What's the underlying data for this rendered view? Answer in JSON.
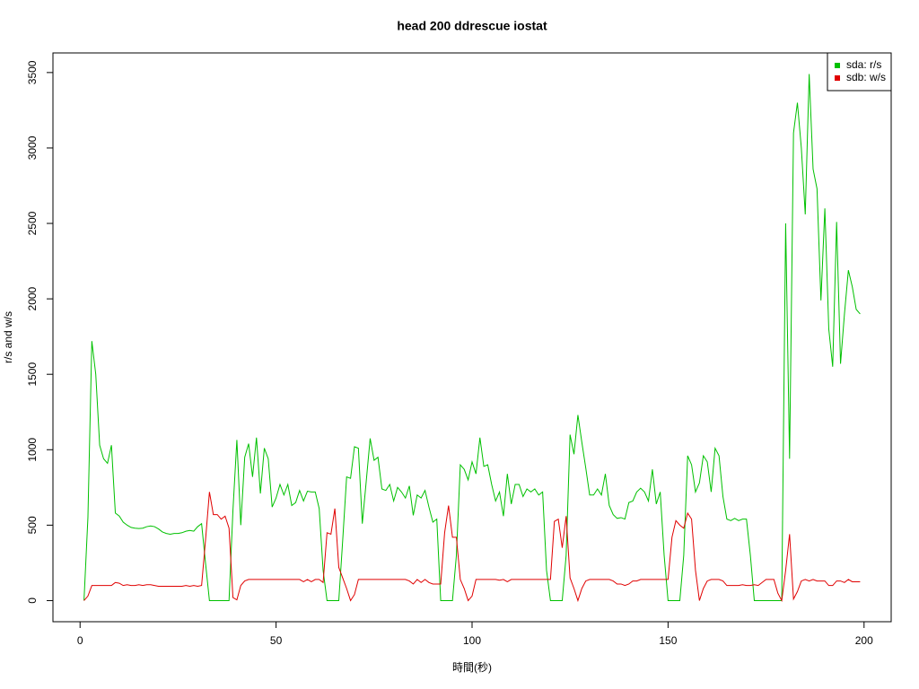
{
  "chart_data": {
    "type": "line",
    "title": "head 200 ddrescue iostat",
    "xlabel": "時間(秒)",
    "ylabel": "r/s and w/s",
    "x": [
      1,
      2,
      3,
      4,
      5,
      6,
      7,
      8,
      9,
      10,
      11,
      12,
      13,
      14,
      15,
      16,
      17,
      18,
      19,
      20,
      21,
      22,
      23,
      24,
      25,
      26,
      27,
      28,
      29,
      30,
      31,
      32,
      33,
      34,
      35,
      36,
      37,
      38,
      39,
      40,
      41,
      42,
      43,
      44,
      45,
      46,
      47,
      48,
      49,
      50,
      51,
      52,
      53,
      54,
      55,
      56,
      57,
      58,
      59,
      60,
      61,
      62,
      63,
      64,
      65,
      66,
      67,
      68,
      69,
      70,
      71,
      72,
      73,
      74,
      75,
      76,
      77,
      78,
      79,
      80,
      81,
      82,
      83,
      84,
      85,
      86,
      87,
      88,
      89,
      90,
      91,
      92,
      93,
      94,
      95,
      96,
      97,
      98,
      99,
      100,
      101,
      102,
      103,
      104,
      105,
      106,
      107,
      108,
      109,
      110,
      111,
      112,
      113,
      114,
      115,
      116,
      117,
      118,
      119,
      120,
      121,
      122,
      123,
      124,
      125,
      126,
      127,
      128,
      129,
      130,
      131,
      132,
      133,
      134,
      135,
      136,
      137,
      138,
      139,
      140,
      141,
      142,
      143,
      144,
      145,
      146,
      147,
      148,
      149,
      150,
      151,
      152,
      153,
      154,
      155,
      156,
      157,
      158,
      159,
      160,
      161,
      162,
      163,
      164,
      165,
      166,
      167,
      168,
      169,
      170,
      171,
      172,
      173,
      174,
      175,
      176,
      177,
      178,
      179,
      180,
      181,
      182,
      183,
      184,
      185,
      186,
      187,
      188,
      189,
      190,
      191,
      192,
      193,
      194,
      195,
      196,
      197,
      198,
      199
    ],
    "series": [
      {
        "name": "sda: r/s",
        "color": "#00c000",
        "values": [
          0,
          550,
          1720,
          1500,
          1030,
          940,
          910,
          1030,
          580,
          560,
          520,
          500,
          485,
          480,
          478,
          480,
          490,
          495,
          490,
          475,
          455,
          445,
          440,
          445,
          445,
          450,
          460,
          465,
          460,
          490,
          510,
          250,
          0,
          0,
          0,
          0,
          0,
          0,
          600,
          1065,
          500,
          950,
          1040,
          820,
          1080,
          710,
          1010,
          940,
          620,
          680,
          770,
          700,
          770,
          630,
          650,
          730,
          660,
          725,
          720,
          720,
          610,
          200,
          0,
          0,
          0,
          0,
          400,
          820,
          810,
          1020,
          1010,
          510,
          790,
          1075,
          930,
          950,
          740,
          730,
          770,
          660,
          750,
          720,
          680,
          760,
          565,
          700,
          680,
          730,
          620,
          520,
          540,
          0,
          0,
          0,
          0,
          300,
          900,
          870,
          800,
          920,
          840,
          1080,
          890,
          900,
          770,
          660,
          720,
          560,
          840,
          640,
          770,
          770,
          690,
          740,
          720,
          740,
          700,
          720,
          200,
          0,
          0,
          0,
          0,
          300,
          1100,
          970,
          1230,
          1050,
          880,
          700,
          700,
          740,
          700,
          840,
          630,
          570,
          545,
          550,
          540,
          650,
          660,
          720,
          745,
          720,
          660,
          870,
          640,
          720,
          300,
          0,
          0,
          0,
          0,
          300,
          960,
          900,
          720,
          780,
          960,
          920,
          720,
          1010,
          960,
          690,
          540,
          530,
          545,
          530,
          540,
          540,
          300,
          0,
          0,
          0,
          0,
          0,
          0,
          0,
          0,
          2500,
          940,
          3100,
          3300,
          3000,
          2560,
          3490,
          2860,
          2730,
          1990,
          2600,
          1800,
          1550,
          2510,
          1570,
          1900,
          2190,
          2080,
          1930,
          1900
        ]
      },
      {
        "name": "sdb: w/s",
        "color": "#e00000",
        "values": [
          0,
          30,
          100,
          100,
          100,
          100,
          100,
          100,
          120,
          115,
          100,
          105,
          100,
          100,
          105,
          100,
          105,
          105,
          100,
          95,
          95,
          95,
          95,
          95,
          95,
          95,
          100,
          95,
          100,
          95,
          100,
          400,
          720,
          570,
          570,
          540,
          560,
          480,
          20,
          5,
          100,
          130,
          140,
          140,
          140,
          140,
          140,
          140,
          140,
          140,
          140,
          140,
          140,
          140,
          140,
          140,
          125,
          140,
          125,
          140,
          140,
          120,
          450,
          440,
          610,
          220,
          150,
          80,
          0,
          40,
          140,
          140,
          140,
          140,
          140,
          140,
          140,
          140,
          140,
          140,
          140,
          140,
          140,
          130,
          110,
          140,
          120,
          140,
          120,
          110,
          110,
          110,
          450,
          630,
          420,
          420,
          140,
          80,
          0,
          30,
          140,
          140,
          140,
          140,
          140,
          140,
          135,
          140,
          125,
          140,
          140,
          140,
          140,
          140,
          140,
          140,
          140,
          140,
          140,
          140,
          525,
          540,
          350,
          560,
          150,
          80,
          0,
          80,
          130,
          140,
          140,
          140,
          140,
          140,
          140,
          130,
          110,
          110,
          100,
          110,
          130,
          130,
          140,
          140,
          140,
          140,
          140,
          140,
          140,
          140,
          420,
          530,
          500,
          480,
          580,
          540,
          200,
          0,
          80,
          130,
          140,
          140,
          140,
          130,
          100,
          100,
          100,
          100,
          105,
          100,
          100,
          105,
          100,
          120,
          140,
          140,
          140,
          50,
          0,
          200,
          440,
          10,
          60,
          130,
          140,
          130,
          140,
          130,
          130,
          130,
          100,
          100,
          130,
          130,
          120,
          140,
          125,
          125,
          125
        ]
      }
    ],
    "xlim": [
      -6.92,
      206.92
    ],
    "xticks": [
      0,
      50,
      100,
      150,
      200
    ],
    "ylim": [
      -140,
      3630
    ],
    "yticks": [
      0,
      500,
      1000,
      1500,
      2000,
      2500,
      3000,
      3500
    ],
    "legend": "topright"
  }
}
